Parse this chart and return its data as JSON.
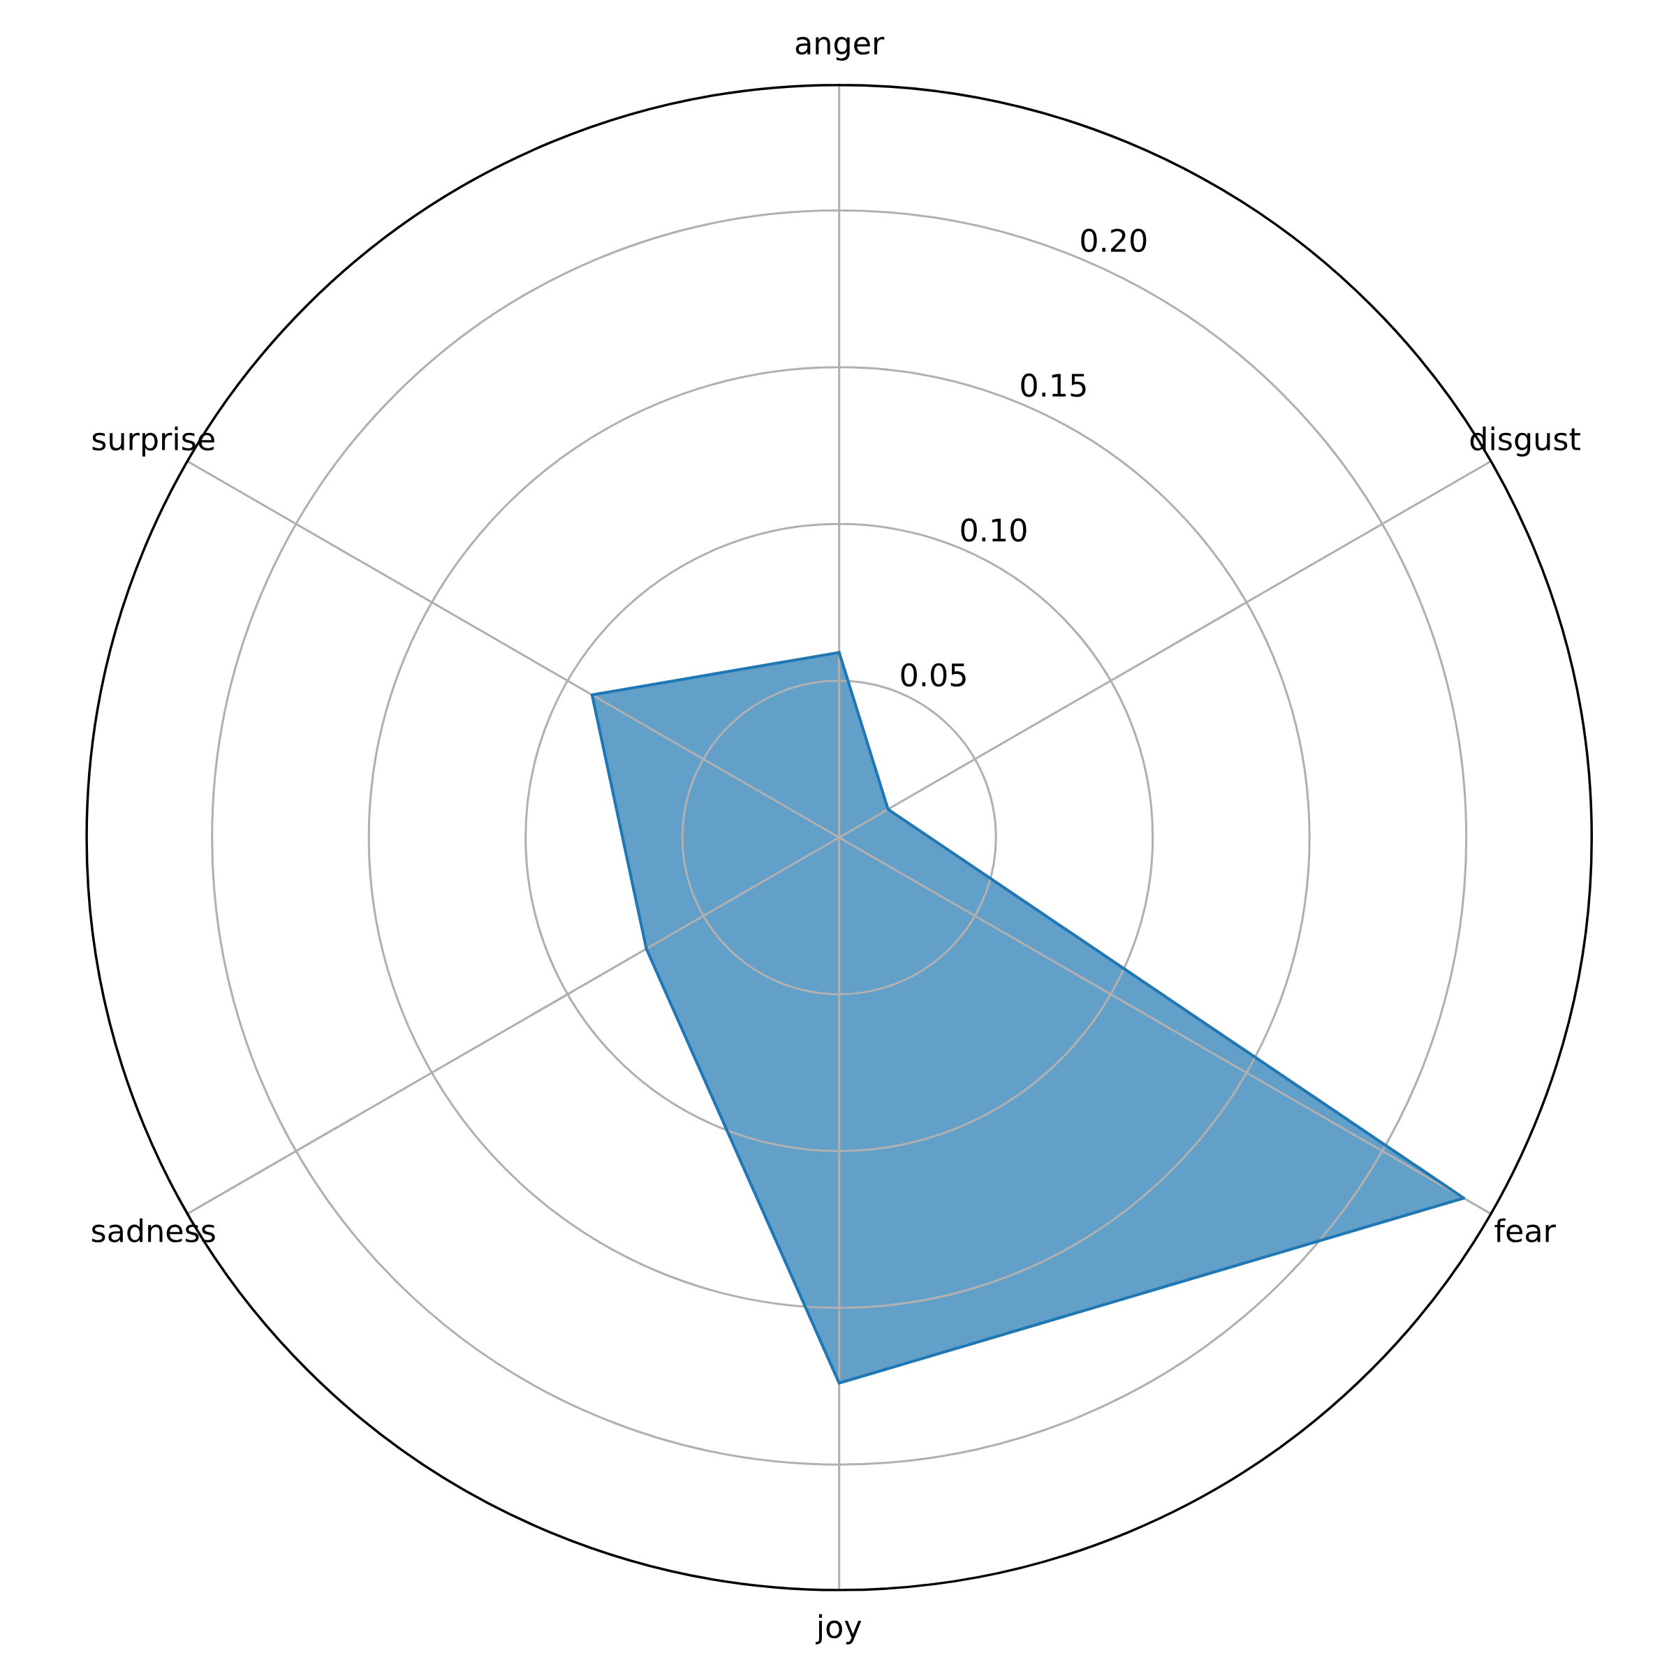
{
  "chart_data": {
    "type": "radar",
    "categories": [
      "anger",
      "disgust",
      "fear",
      "joy",
      "sadness",
      "surprise"
    ],
    "series": [
      {
        "color": "#1f77b4",
        "values": [
          0.059,
          0.018,
          0.23,
          0.174,
          0.071,
          0.091
        ]
      }
    ],
    "ylim": [
      0,
      0.24
    ],
    "yticks": [
      0.05,
      {
        "value": 0.1,
        "label": "0.10"
      },
      0.15,
      {
        "value": 0.2,
        "label": "0.20"
      }
    ],
    "grid": true,
    "marker": "none",
    "line_style": "solid"
  }
}
